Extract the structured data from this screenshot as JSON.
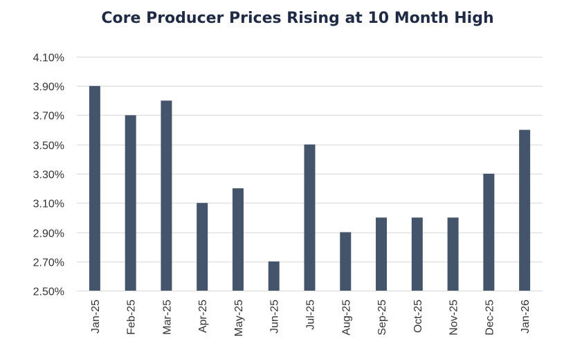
{
  "chart_data": {
    "type": "bar",
    "title": "Core Producer Prices Rising at 10 Month High",
    "xlabel": "",
    "ylabel": "",
    "ylim": [
      2.5,
      4.1
    ],
    "ytick_values": [
      2.5,
      2.7,
      2.9,
      3.1,
      3.3,
      3.5,
      3.7,
      3.9,
      4.1
    ],
    "ytick_labels": [
      "2.50%",
      "2.70%",
      "2.90%",
      "3.10%",
      "3.30%",
      "3.50%",
      "3.70%",
      "3.90%",
      "4.10%"
    ],
    "categories": [
      "Jan-25",
      "Feb-25",
      "Mar-25",
      "Apr-25",
      "May-25",
      "Jun-25",
      "Jul-25",
      "Aug-25",
      "Sep-25",
      "Oct-25",
      "Nov-25",
      "Dec-25",
      "Jan-26"
    ],
    "values": [
      3.9,
      3.7,
      3.8,
      3.1,
      3.2,
      2.7,
      3.5,
      2.9,
      3.0,
      3.0,
      3.0,
      3.3,
      3.6
    ],
    "grid": true,
    "legend": "none",
    "bar_color": "#44546a",
    "grid_color": "#d9d9d9",
    "title_color": "#1f2a44"
  }
}
